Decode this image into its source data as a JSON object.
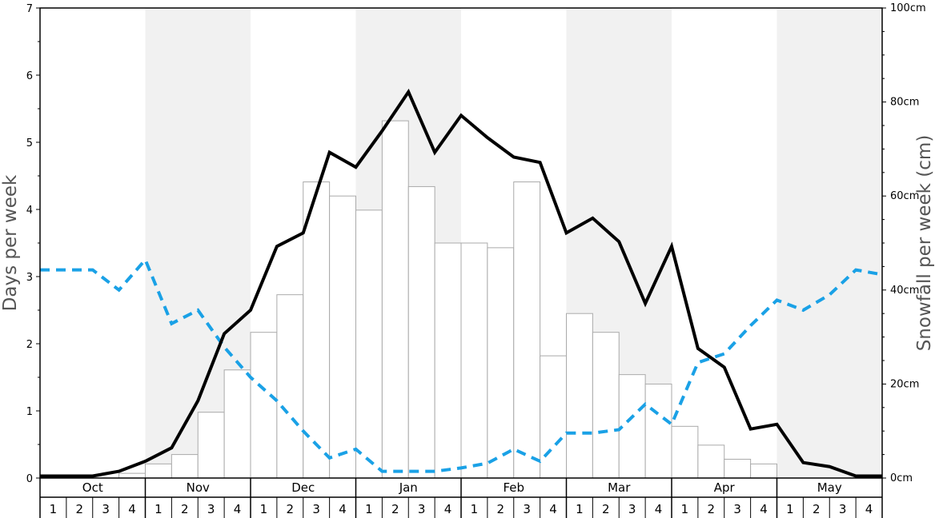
{
  "chart_data": {
    "type": "bar",
    "months": [
      "Oct",
      "Nov",
      "Dec",
      "Jan",
      "Feb",
      "Mar",
      "Apr",
      "May"
    ],
    "week_labels": [
      "1",
      "2",
      "3",
      "4"
    ],
    "ylabel_left": "Days per week",
    "ylabel_right": "Snowfall per week (cm)",
    "ylim_left": [
      0,
      7
    ],
    "ylim_right": [
      0,
      100
    ],
    "left_ticks": [
      "0",
      "1",
      "2",
      "3",
      "4",
      "5",
      "6",
      "7"
    ],
    "right_ticks": [
      "0cm",
      "20cm",
      "40cm",
      "60cm",
      "80cm",
      "100cm"
    ],
    "colors": {
      "band_shade": "#f1f1f1",
      "bar_fill": "#ffffff",
      "bar_stroke": "#aaaaaa",
      "solid_line": "#000000",
      "dashed_line": "#1aa1e6"
    },
    "series": [
      {
        "type": "bar",
        "axis": "right",
        "values": [
          0,
          0,
          0,
          1,
          3,
          5,
          14,
          23,
          31,
          39,
          63,
          60,
          57,
          76,
          62,
          50,
          50,
          49,
          63,
          26,
          35,
          31,
          22,
          20,
          11,
          7,
          4,
          3,
          0,
          0,
          0,
          0
        ]
      },
      {
        "type": "line",
        "axis": "left",
        "style": "solid",
        "values": [
          0.03,
          0.03,
          0.03,
          0.1,
          0.25,
          0.45,
          1.15,
          2.15,
          2.5,
          3.45,
          3.65,
          4.85,
          4.63,
          5.17,
          5.75,
          4.85,
          5.4,
          5.07,
          4.78,
          4.7,
          3.65,
          3.87,
          3.52,
          2.6,
          3.45,
          1.93,
          1.65,
          0.73,
          0.8,
          0.23,
          0.17,
          0.03,
          0.03
        ]
      },
      {
        "type": "line",
        "axis": "left",
        "style": "dashed",
        "values": [
          3.1,
          3.1,
          3.1,
          2.8,
          3.25,
          2.3,
          2.5,
          1.95,
          1.5,
          1.15,
          0.7,
          0.3,
          0.43,
          0.1,
          0.1,
          0.1,
          0.15,
          0.22,
          0.43,
          0.25,
          0.67,
          0.67,
          0.72,
          1.1,
          0.8,
          1.72,
          1.85,
          2.27,
          2.65,
          2.5,
          2.73,
          3.1,
          3.03
        ]
      }
    ]
  }
}
